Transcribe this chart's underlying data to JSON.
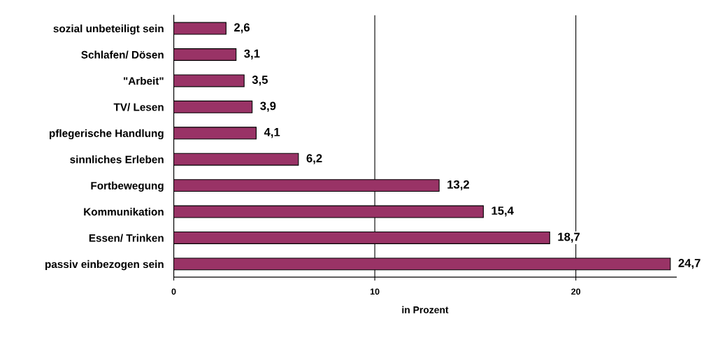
{
  "chart_data": {
    "type": "bar",
    "orientation": "horizontal",
    "xlabel": "in Prozent",
    "categories": [
      "sozial unbeteiligt sein",
      "Schlafen/ Dösen",
      "\"Arbeit\"",
      "TV/ Lesen",
      "pflegerische Handlung",
      "sinnliches Erleben",
      "Fortbewegung",
      "Kommunikation",
      "Essen/ Trinken",
      "passiv einbezogen sein"
    ],
    "values": [
      2.6,
      3.1,
      3.5,
      3.9,
      4.1,
      6.2,
      13.2,
      15.4,
      18.7,
      24.7
    ],
    "value_labels": [
      "2,6",
      "3,1",
      "3,5",
      "3,9",
      "4,1",
      "6,2",
      "13,2",
      "15,4",
      "18,7",
      "24,7"
    ],
    "color": "#993366",
    "xlim": [
      0,
      25
    ],
    "xticks": [
      0,
      10,
      20
    ],
    "grid": "x"
  }
}
